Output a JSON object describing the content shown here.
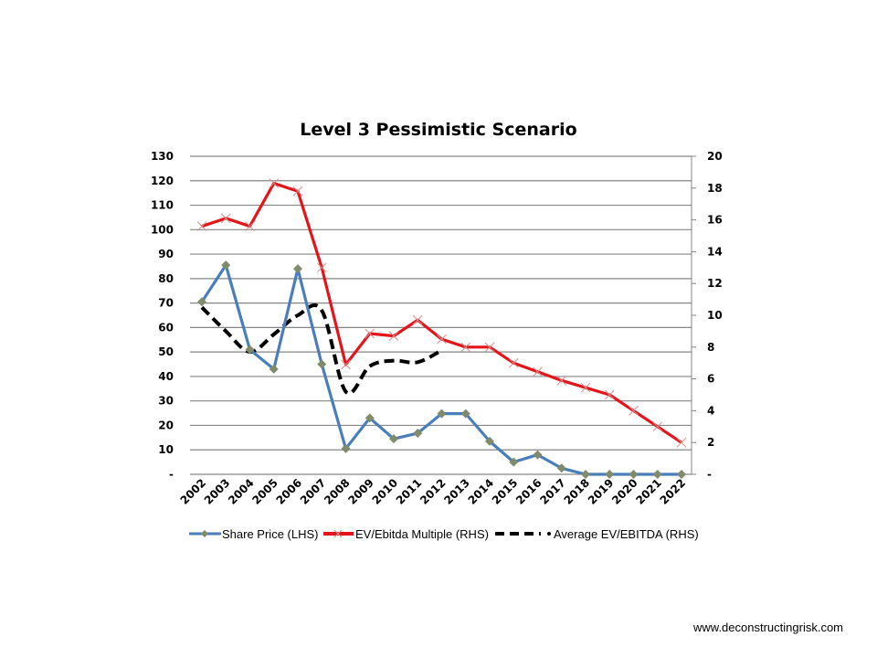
{
  "chart_data": {
    "type": "line",
    "title": "Level 3 Pessimistic Scenario",
    "categories": [
      "2002",
      "2003",
      "2004",
      "2005",
      "2006",
      "2007",
      "2008",
      "2009",
      "2010",
      "2011",
      "2012",
      "2013",
      "2014",
      "2015",
      "2016",
      "2017",
      "2018",
      "2019",
      "2020",
      "2021",
      "2022"
    ],
    "left_axis": {
      "ylim": [
        0,
        130
      ],
      "ticks": [
        "-",
        "10",
        "20",
        "30",
        "40",
        "50",
        "60",
        "70",
        "80",
        "90",
        "100",
        "110",
        "120",
        "130"
      ],
      "tick_values": [
        0,
        10,
        20,
        30,
        40,
        50,
        60,
        70,
        80,
        90,
        100,
        110,
        120,
        130
      ]
    },
    "right_axis": {
      "ylim": [
        0,
        20
      ],
      "ticks": [
        "-",
        "2",
        "4",
        "6",
        "8",
        "10",
        "12",
        "14",
        "16",
        "18",
        "20"
      ],
      "tick_values": [
        0,
        2,
        4,
        6,
        8,
        10,
        12,
        14,
        16,
        18,
        20
      ]
    },
    "grid": true,
    "legend_position": "bottom",
    "series": [
      {
        "name": "Share Price (LHS)",
        "axis": "left",
        "color": "#4a7ebb",
        "marker": "diamond",
        "marker_color": "#7f8b6b",
        "style": "solid",
        "values": [
          70.5,
          85.5,
          51,
          43,
          84,
          45,
          10.5,
          23,
          14.5,
          16.8,
          24.8,
          24.8,
          13.5,
          5,
          8,
          2.5,
          0,
          0,
          0,
          0,
          0
        ]
      },
      {
        "name": "EV/Ebitda Multiple (RHS)",
        "axis": "right",
        "color": "#e3151a",
        "marker": "x",
        "style": "solid",
        "values": [
          15.6,
          16.1,
          15.6,
          18.3,
          17.8,
          13.0,
          6.9,
          8.85,
          8.7,
          9.7,
          8.5,
          8.0,
          8.0,
          7.0,
          6.45,
          5.9,
          5.45,
          5.0,
          4.0,
          3.0,
          2.0
        ]
      },
      {
        "name": "Average EV/EBITDA (RHS)",
        "axis": "right",
        "color": "#000000",
        "marker": "none",
        "style": "dashed-smooth",
        "values": [
          10.5,
          9.0,
          7.7,
          8.8,
          10.0,
          10.3,
          5.2,
          6.8,
          7.15,
          7.05,
          7.8,
          null,
          null,
          null,
          null,
          null,
          null,
          null,
          null,
          null,
          null
        ]
      }
    ]
  },
  "footer": {
    "url": "www.deconstructingrisk.com"
  }
}
